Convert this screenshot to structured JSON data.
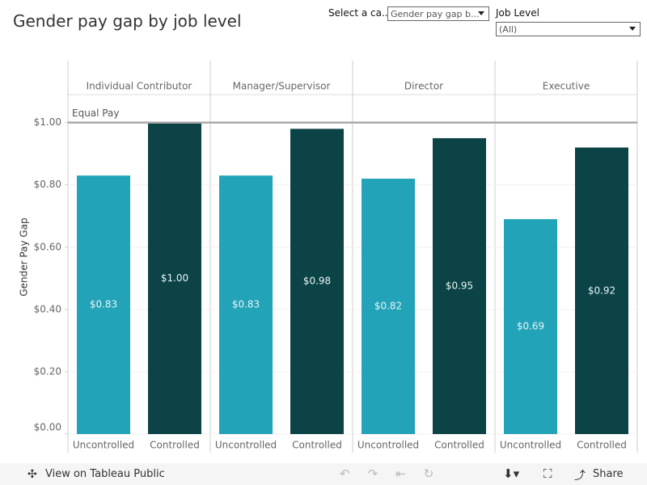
{
  "header": {
    "title": "Gender pay gap by job level",
    "filter1_label": "Select a ca...",
    "filter1_value": "Gender pay gap b...",
    "filter2_label": "Job Level",
    "filter2_value": "(All)"
  },
  "chart_data": {
    "type": "bar",
    "y_label": "Gender Pay Gap",
    "categories": [
      "Uncontrolled",
      "Controlled"
    ],
    "colors": [
      "#23a3b8",
      "#0b4346"
    ],
    "panels": [
      {
        "name": "Individual Contributor",
        "values": [
          0.83,
          1.0
        ],
        "value_labels": [
          "$0.83",
          "$1.00"
        ]
      },
      {
        "name": "Manager/Supervisor",
        "values": [
          0.83,
          0.98
        ],
        "value_labels": [
          "$0.83",
          "$0.98"
        ]
      },
      {
        "name": "Director",
        "values": [
          0.82,
          0.95
        ],
        "value_labels": [
          "$0.82",
          "$0.95"
        ]
      },
      {
        "name": "Executive",
        "values": [
          0.69,
          0.92
        ],
        "value_labels": [
          "$0.69",
          "$0.92"
        ]
      }
    ],
    "reference_line": {
      "label": "Equal Pay",
      "value": 1.0
    },
    "ylim": [
      0,
      1.09
    ],
    "yticks": [
      {
        "value": 0,
        "label": "$0.00"
      },
      {
        "value": 0.2,
        "label": "$0.20"
      },
      {
        "value": 0.4,
        "label": "$0.40"
      },
      {
        "value": 0.6,
        "label": "$0.60"
      },
      {
        "value": 0.8,
        "label": "$0.80"
      },
      {
        "value": 1.0,
        "label": "$1.00"
      }
    ],
    "grid": true
  },
  "toolbar": {
    "view_link": "View on Tableau Public",
    "share": "Share"
  }
}
